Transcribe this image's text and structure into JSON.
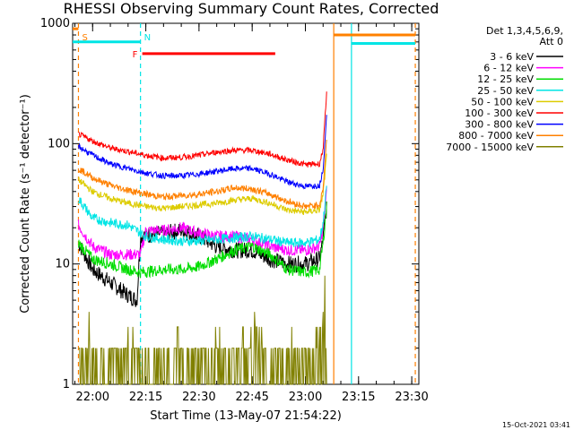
{
  "chart_data": {
    "type": "line",
    "title": "RHESSI Observing Summary Count Rates, Corrected",
    "xlabel": "Start Time (13-May-07 21:54:22)",
    "ylabel": "Corrected Count Rate (s⁻¹ detector⁻¹)",
    "yscale": "log",
    "ylim": [
      1,
      1000
    ],
    "y_ticks": [
      {
        "value": 1,
        "label": "1"
      },
      {
        "value": 10,
        "label": "10"
      },
      {
        "value": 100,
        "label": "100"
      },
      {
        "value": 1000,
        "label": "1000"
      }
    ],
    "xlim": [
      "21:54:22",
      "23:32:00"
    ],
    "x_ticks": [
      "22:00",
      "22:15",
      "22:30",
      "22:45",
      "23:00",
      "23:15",
      "23:30"
    ],
    "x_tick_values": [
      "22:00:00",
      "22:15:00",
      "22:30:00",
      "22:45:00",
      "23:00:00",
      "23:15:00",
      "23:30:00"
    ],
    "grid": false,
    "legend_position": "top-right",
    "legend_header": [
      "Det 1,3,4,5,6,9,",
      "Att 0"
    ],
    "series": [
      {
        "name": "3 - 6 keV",
        "color": "#000000",
        "noise": 0.1,
        "points": [
          [
            "21:56:00",
            15
          ],
          [
            "22:00:00",
            9
          ],
          [
            "22:05:00",
            7
          ],
          [
            "22:10:00",
            5.5
          ],
          [
            "22:12:30",
            5
          ],
          [
            "22:13:30",
            17
          ],
          [
            "22:20:00",
            18
          ],
          [
            "22:25:00",
            19
          ],
          [
            "22:30:00",
            17
          ],
          [
            "22:35:00",
            14
          ],
          [
            "22:40:00",
            13
          ],
          [
            "22:45:00",
            13
          ],
          [
            "22:50:00",
            11
          ],
          [
            "22:55:00",
            10
          ],
          [
            "23:00:00",
            10
          ],
          [
            "23:04:00",
            11
          ],
          [
            "23:05:00",
            16
          ],
          [
            "23:06:00",
            30
          ]
        ]
      },
      {
        "name": "6 - 12 keV",
        "color": "#ff00ff",
        "noise": 0.07,
        "points": [
          [
            "21:56:00",
            21
          ],
          [
            "22:00:00",
            14
          ],
          [
            "22:05:00",
            12
          ],
          [
            "22:10:00",
            12
          ],
          [
            "22:13:30",
            12
          ],
          [
            "22:15:00",
            19
          ],
          [
            "22:20:00",
            19
          ],
          [
            "22:25:00",
            20
          ],
          [
            "22:30:00",
            18
          ],
          [
            "22:35:00",
            17
          ],
          [
            "22:40:00",
            17
          ],
          [
            "22:45:00",
            16
          ],
          [
            "22:50:00",
            14
          ],
          [
            "22:55:00",
            13
          ],
          [
            "23:00:00",
            13
          ],
          [
            "23:04:00",
            14
          ],
          [
            "23:05:00",
            20
          ],
          [
            "23:06:00",
            40
          ]
        ]
      },
      {
        "name": "12 - 25 keV",
        "color": "#00dd00",
        "noise": 0.07,
        "points": [
          [
            "21:56:00",
            15
          ],
          [
            "22:00:00",
            11
          ],
          [
            "22:05:00",
            10
          ],
          [
            "22:10:00",
            9
          ],
          [
            "22:13:30",
            8.5
          ],
          [
            "22:20:00",
            9
          ],
          [
            "22:25:00",
            9
          ],
          [
            "22:30:00",
            9.5
          ],
          [
            "22:35:00",
            11
          ],
          [
            "22:40:00",
            13
          ],
          [
            "22:45:00",
            14
          ],
          [
            "22:50:00",
            12
          ],
          [
            "22:55:00",
            9
          ],
          [
            "23:00:00",
            8.5
          ],
          [
            "23:04:00",
            9
          ],
          [
            "23:05:00",
            15
          ],
          [
            "23:06:00",
            30
          ]
        ]
      },
      {
        "name": "25 - 50 keV",
        "color": "#00e5e5",
        "noise": 0.06,
        "points": [
          [
            "21:56:00",
            35
          ],
          [
            "22:00:00",
            24
          ],
          [
            "22:05:00",
            22
          ],
          [
            "22:10:00",
            21
          ],
          [
            "22:15:00",
            17
          ],
          [
            "22:20:00",
            16
          ],
          [
            "22:25:00",
            15.5
          ],
          [
            "22:30:00",
            15.5
          ],
          [
            "22:35:00",
            16
          ],
          [
            "22:40:00",
            16.5
          ],
          [
            "22:45:00",
            17
          ],
          [
            "22:50:00",
            16
          ],
          [
            "22:55:00",
            15
          ],
          [
            "23:00:00",
            15
          ],
          [
            "23:04:00",
            16
          ],
          [
            "23:05:00",
            22
          ],
          [
            "23:06:00",
            45
          ]
        ]
      },
      {
        "name": "50 - 100 keV",
        "color": "#ddcc00",
        "noise": 0.04,
        "points": [
          [
            "21:56:00",
            50
          ],
          [
            "22:00:00",
            40
          ],
          [
            "22:05:00",
            35
          ],
          [
            "22:10:00",
            32
          ],
          [
            "22:15:00",
            30
          ],
          [
            "22:20:00",
            29
          ],
          [
            "22:25:00",
            30
          ],
          [
            "22:30:00",
            31
          ],
          [
            "22:35:00",
            32
          ],
          [
            "22:40:00",
            34
          ],
          [
            "22:45:00",
            35
          ],
          [
            "22:50:00",
            32
          ],
          [
            "22:55:00",
            28
          ],
          [
            "23:00:00",
            27
          ],
          [
            "23:04:00",
            28
          ],
          [
            "23:05:00",
            38
          ],
          [
            "23:06:00",
            80
          ]
        ]
      },
      {
        "name": "100 - 300 keV",
        "color": "#ff0000",
        "noise": 0.035,
        "points": [
          [
            "21:56:00",
            120
          ],
          [
            "22:00:00",
            105
          ],
          [
            "22:05:00",
            92
          ],
          [
            "22:10:00",
            86
          ],
          [
            "22:15:00",
            80
          ],
          [
            "22:20:00",
            76
          ],
          [
            "22:25:00",
            77
          ],
          [
            "22:30:00",
            80
          ],
          [
            "22:35:00",
            85
          ],
          [
            "22:40:00",
            88
          ],
          [
            "22:45:00",
            88
          ],
          [
            "22:50:00",
            82
          ],
          [
            "22:55:00",
            73
          ],
          [
            "23:00:00",
            67
          ],
          [
            "23:04:00",
            68
          ],
          [
            "23:05:00",
            90
          ],
          [
            "23:06:00",
            260
          ]
        ]
      },
      {
        "name": "300 - 800 keV",
        "color": "#0000ff",
        "noise": 0.035,
        "points": [
          [
            "21:56:00",
            95
          ],
          [
            "22:00:00",
            80
          ],
          [
            "22:05:00",
            68
          ],
          [
            "22:10:00",
            62
          ],
          [
            "22:15:00",
            57
          ],
          [
            "22:20:00",
            54
          ],
          [
            "22:25:00",
            54
          ],
          [
            "22:30:00",
            56
          ],
          [
            "22:35:00",
            59
          ],
          [
            "22:40:00",
            62
          ],
          [
            "22:45:00",
            62
          ],
          [
            "22:50:00",
            56
          ],
          [
            "22:55:00",
            48
          ],
          [
            "23:00:00",
            44
          ],
          [
            "23:04:00",
            45
          ],
          [
            "23:05:00",
            62
          ],
          [
            "23:06:00",
            170
          ]
        ]
      },
      {
        "name": "800 - 7000 keV",
        "color": "#ff8000",
        "noise": 0.04,
        "points": [
          [
            "21:56:00",
            62
          ],
          [
            "22:00:00",
            52
          ],
          [
            "22:05:00",
            45
          ],
          [
            "22:10:00",
            41
          ],
          [
            "22:15:00",
            38
          ],
          [
            "22:20:00",
            36
          ],
          [
            "22:25:00",
            37
          ],
          [
            "22:30:00",
            38
          ],
          [
            "22:35:00",
            40
          ],
          [
            "22:40:00",
            43
          ],
          [
            "22:45:00",
            42
          ],
          [
            "22:50:00",
            38
          ],
          [
            "22:55:00",
            33
          ],
          [
            "23:00:00",
            30
          ],
          [
            "23:04:00",
            31
          ],
          [
            "23:05:00",
            42
          ],
          [
            "23:06:00",
            110
          ]
        ]
      },
      {
        "name": "7000 - 15000 keV",
        "color": "#808000",
        "noise": 0,
        "points": [
          [
            "21:56:00",
            5
          ],
          [
            "21:58:00",
            3
          ],
          [
            "22:00:00",
            2
          ],
          [
            "22:05:00",
            1.5
          ],
          [
            "22:10:00",
            2
          ],
          [
            "22:12:00",
            1.5
          ],
          [
            "22:22:00",
            1.5
          ],
          [
            "22:25:00",
            2.5
          ],
          [
            "22:30:00",
            1.5
          ],
          [
            "22:35:00",
            2
          ],
          [
            "22:40:00",
            2
          ],
          [
            "22:45:00",
            2.5
          ],
          [
            "22:50:00",
            2
          ],
          [
            "22:55:00",
            2
          ],
          [
            "23:00:00",
            1.5
          ],
          [
            "23:03:00",
            2
          ],
          [
            "23:05:00",
            3
          ],
          [
            "23:06:00",
            10
          ]
        ]
      }
    ],
    "markers": [
      {
        "label": "S",
        "color": "#ff8000",
        "style": "dashed",
        "at": "21:56:00"
      },
      {
        "label": "N",
        "color": "#00e5e5",
        "style": "dashed",
        "at": "22:13:30"
      },
      {
        "label": "",
        "color": "#ff8000",
        "style": "solid",
        "at": "23:08:00"
      },
      {
        "label": "",
        "color": "#00e5e5",
        "style": "solid",
        "at": "23:13:00"
      },
      {
        "label": "",
        "color": "#ff8000",
        "style": "dashed",
        "at": "23:31:00"
      }
    ],
    "flags": [
      {
        "label": "",
        "color": "#ff8000",
        "start": "21:54:22",
        "end": "21:56:00",
        "y": 900
      },
      {
        "label": "",
        "color": "#00e5e5",
        "start": "21:54:22",
        "end": "22:13:30",
        "y": 700
      },
      {
        "label": "F",
        "color": "#ff0000",
        "start": "22:14:00",
        "end": "22:51:30",
        "y": 560
      },
      {
        "label": "",
        "color": "#ff8000",
        "start": "23:08:00",
        "end": "23:31:00",
        "y": 800
      },
      {
        "label": "",
        "color": "#00e5e5",
        "start": "23:13:00",
        "end": "23:31:00",
        "y": 680
      }
    ]
  },
  "footer": {
    "timestamp": "15-Oct-2021 03:41"
  }
}
